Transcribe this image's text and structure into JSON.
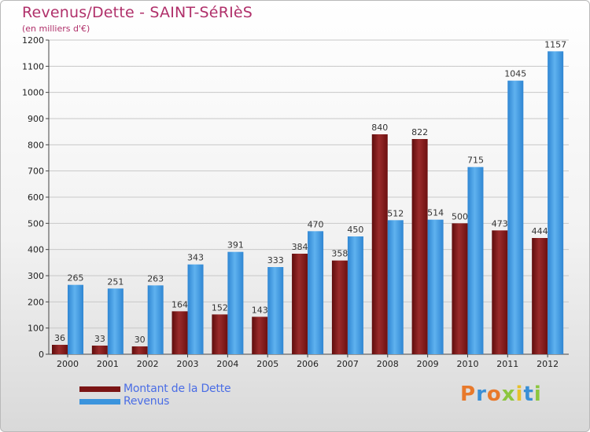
{
  "title": "Revenus/Dette - SAINT-SéRIèS",
  "subtitle": "(en milliers d'€)",
  "logo": "Proxiti",
  "colors": {
    "dette": "#7a1414",
    "revenus": "#3b94dd",
    "title": "#b0306a",
    "legend_text": "#4a6de5"
  },
  "chart_data": {
    "type": "bar",
    "categories": [
      "2000",
      "2001",
      "2002",
      "2003",
      "2004",
      "2005",
      "2006",
      "2007",
      "2008",
      "2009",
      "2010",
      "2011",
      "2012"
    ],
    "series": [
      {
        "name": "Montant de la Dette",
        "values": [
          36,
          33,
          30,
          164,
          152,
          143,
          384,
          358,
          840,
          822,
          500,
          473,
          444
        ]
      },
      {
        "name": "Revenus",
        "values": [
          265,
          251,
          263,
          343,
          391,
          333,
          470,
          450,
          512,
          514,
          715,
          1045,
          1157
        ]
      }
    ],
    "ylim": [
      0,
      1200
    ],
    "yticks": [
      0,
      100,
      200,
      300,
      400,
      500,
      600,
      700,
      800,
      900,
      1000,
      1100,
      1200
    ],
    "grid": true,
    "legend_position": "bottom-left"
  }
}
